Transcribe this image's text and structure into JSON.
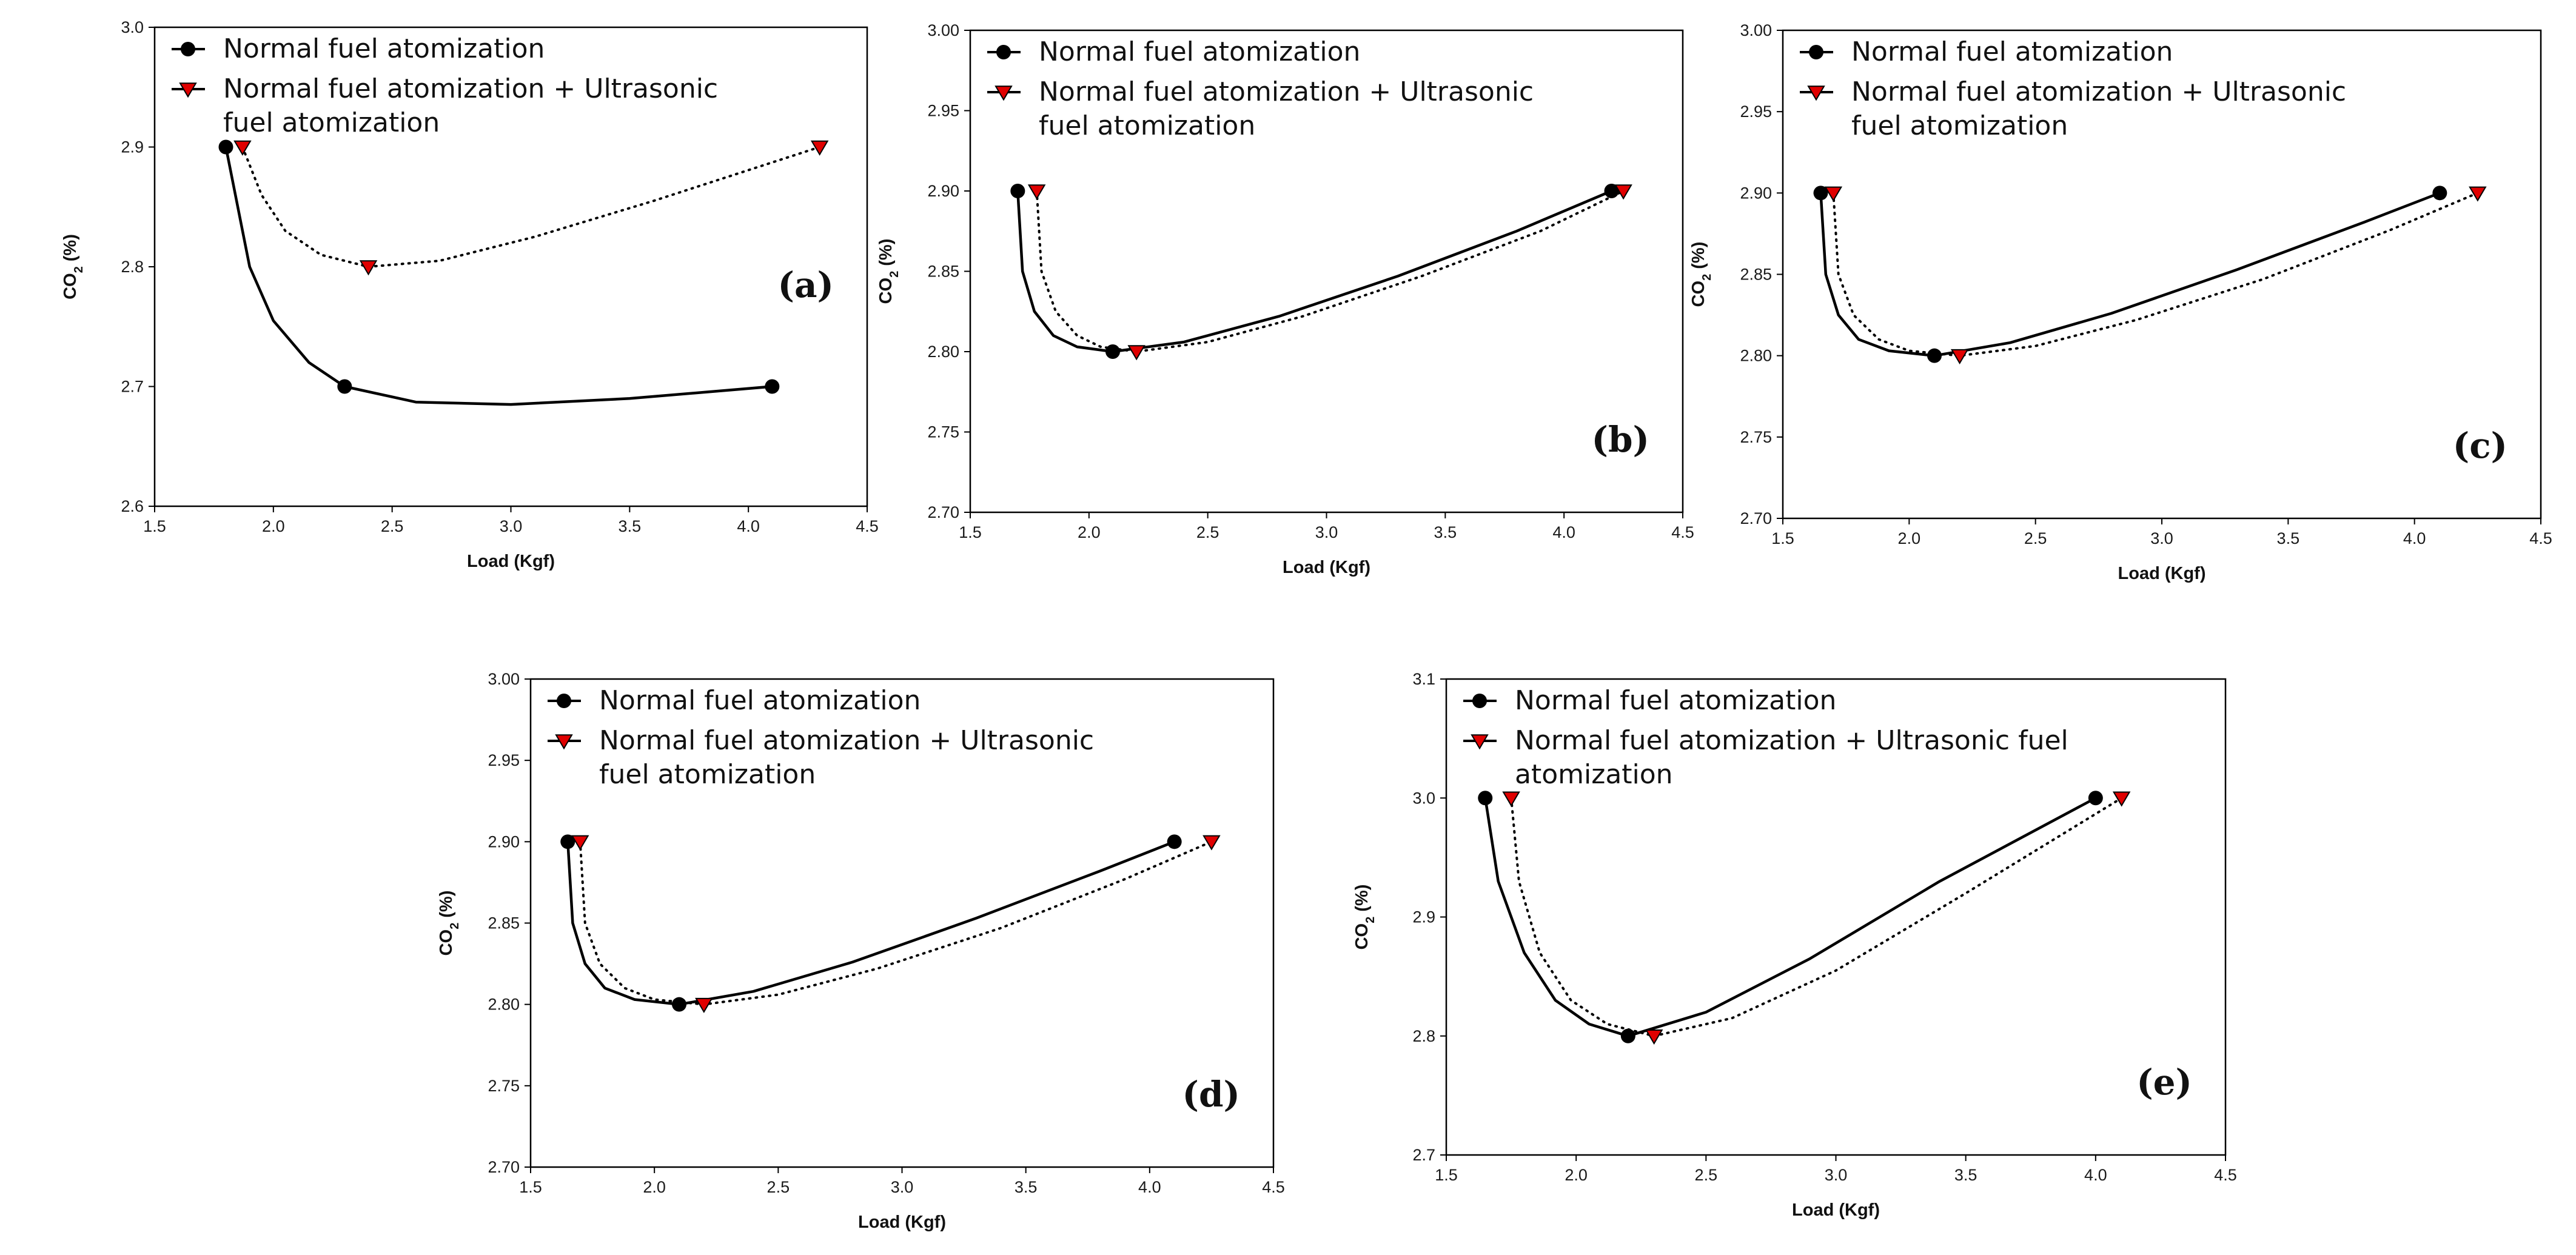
{
  "figure": {
    "marker_color": "#e00000",
    "line_color": "#000000"
  },
  "chart_data": [
    {
      "type": "line",
      "label": "(a)",
      "xlabel": "Load (Kgf)",
      "ylabel_base": "CO",
      "ylabel_sub": "2",
      "ylabel_unit": " (%)",
      "xlim": [
        1.5,
        4.5
      ],
      "ylim": [
        2.6,
        3.0
      ],
      "legend": "top-left",
      "xticks": [
        1.5,
        2.0,
        2.5,
        3.0,
        3.5,
        4.0,
        4.5
      ],
      "xtick_labels": [
        "1.5",
        "2.0",
        "2.5",
        "3.0",
        "3.5",
        "4.0",
        "4.5"
      ],
      "yticks": [
        2.6,
        2.7,
        2.8,
        2.9,
        3.0
      ],
      "ytick_labels": [
        "2.6",
        "2.7",
        "2.8",
        "2.9",
        "3.0"
      ],
      "series": [
        {
          "name": "Normal fuel atomization",
          "legend_lines": [
            "Normal fuel atomization"
          ],
          "marker": "circle",
          "line": "solid",
          "x": [
            1.8,
            2.3,
            4.1
          ],
          "y": [
            2.9,
            2.7,
            2.7
          ],
          "curve_x": [
            1.8,
            1.9,
            2.0,
            2.15,
            2.3,
            2.6,
            3.0,
            3.5,
            4.1
          ],
          "curve_y": [
            2.9,
            2.8,
            2.755,
            2.72,
            2.7,
            2.687,
            2.685,
            2.69,
            2.7
          ]
        },
        {
          "name": "Normal fuel atomization + Ultrasonic fuel atomization",
          "legend_lines": [
            "Normal fuel atomization + Ultrasonic",
            "fuel atomization"
          ],
          "marker": "triangle-down",
          "line": "dotted",
          "x": [
            1.87,
            2.4,
            4.3
          ],
          "y": [
            2.9,
            2.8,
            2.9
          ],
          "curve_x": [
            1.87,
            1.95,
            2.05,
            2.2,
            2.4,
            2.7,
            3.1,
            3.6,
            4.3
          ],
          "curve_y": [
            2.9,
            2.86,
            2.83,
            2.81,
            2.8,
            2.805,
            2.825,
            2.855,
            2.9
          ]
        }
      ]
    },
    {
      "type": "line",
      "label": "(b)",
      "xlabel": "Load (Kgf)",
      "ylabel_base": "CO",
      "ylabel_sub": "2",
      "ylabel_unit": " (%)",
      "xlim": [
        1.5,
        4.5
      ],
      "ylim": [
        2.7,
        3.0
      ],
      "legend": "top-left",
      "xticks": [
        1.5,
        2.0,
        2.5,
        3.0,
        3.5,
        4.0,
        4.5
      ],
      "xtick_labels": [
        "1.5",
        "2.0",
        "2.5",
        "3.0",
        "3.5",
        "4.0",
        "4.5"
      ],
      "yticks": [
        2.7,
        2.75,
        2.8,
        2.85,
        2.9,
        2.95,
        3.0
      ],
      "ytick_labels": [
        "2.70",
        "2.75",
        "2.80",
        "2.85",
        "2.90",
        "2.95",
        "3.00"
      ],
      "series": [
        {
          "name": "Normal fuel atomization",
          "legend_lines": [
            "Normal fuel atomization"
          ],
          "marker": "circle",
          "line": "solid",
          "x": [
            1.7,
            2.1,
            4.2
          ],
          "y": [
            2.9,
            2.8,
            2.9
          ],
          "curve_x": [
            1.7,
            1.72,
            1.77,
            1.85,
            1.95,
            2.1,
            2.4,
            2.8,
            3.3,
            3.8,
            4.2
          ],
          "curve_y": [
            2.9,
            2.85,
            2.825,
            2.81,
            2.803,
            2.8,
            2.806,
            2.822,
            2.847,
            2.875,
            2.9
          ]
        },
        {
          "name": "Normal fuel atomization + Ultrasonic fuel atomization",
          "legend_lines": [
            "Normal fuel atomization + Ultrasonic",
            "fuel atomization"
          ],
          "marker": "triangle-down",
          "line": "dotted",
          "x": [
            1.78,
            2.2,
            4.25
          ],
          "y": [
            2.9,
            2.8,
            2.9
          ],
          "curve_x": [
            1.78,
            1.8,
            1.86,
            1.95,
            2.05,
            2.2,
            2.5,
            2.9,
            3.4,
            3.9,
            4.25
          ],
          "curve_y": [
            2.9,
            2.85,
            2.825,
            2.81,
            2.803,
            2.8,
            2.806,
            2.822,
            2.847,
            2.875,
            2.9
          ]
        }
      ]
    },
    {
      "type": "line",
      "label": "(c)",
      "xlabel": "Load (Kgf)",
      "ylabel_base": "CO",
      "ylabel_sub": "2",
      "ylabel_unit": " (%)",
      "xlim": [
        1.5,
        4.5
      ],
      "ylim": [
        2.7,
        3.0
      ],
      "legend": "top-left",
      "xticks": [
        1.5,
        2.0,
        2.5,
        3.0,
        3.5,
        4.0,
        4.5
      ],
      "xtick_labels": [
        "1.5",
        "2.0",
        "2.5",
        "3.0",
        "3.5",
        "4.0",
        "4.5"
      ],
      "yticks": [
        2.7,
        2.75,
        2.8,
        2.85,
        2.9,
        2.95,
        3.0
      ],
      "ytick_labels": [
        "2.70",
        "2.75",
        "2.80",
        "2.85",
        "2.90",
        "2.95",
        "3.00"
      ],
      "series": [
        {
          "name": "Normal fuel atomization",
          "legend_lines": [
            "Normal fuel atomization"
          ],
          "marker": "circle",
          "line": "solid",
          "x": [
            1.65,
            2.1,
            4.1
          ],
          "y": [
            2.9,
            2.8,
            2.9
          ],
          "curve_x": [
            1.65,
            1.67,
            1.72,
            1.8,
            1.92,
            2.1,
            2.4,
            2.8,
            3.3,
            3.8,
            4.1
          ],
          "curve_y": [
            2.9,
            2.85,
            2.825,
            2.81,
            2.803,
            2.8,
            2.808,
            2.826,
            2.853,
            2.882,
            2.9
          ]
        },
        {
          "name": "Normal fuel atomization + Ultrasonic fuel atomization",
          "legend_lines": [
            "Normal fuel atomization + Ultrasonic",
            "fuel atomization"
          ],
          "marker": "triangle-down",
          "line": "dotted",
          "x": [
            1.7,
            2.2,
            4.25
          ],
          "y": [
            2.9,
            2.8,
            2.9
          ],
          "curve_x": [
            1.7,
            1.72,
            1.78,
            1.88,
            2.0,
            2.2,
            2.5,
            2.9,
            3.4,
            3.9,
            4.25
          ],
          "curve_y": [
            2.9,
            2.85,
            2.825,
            2.81,
            2.803,
            2.8,
            2.806,
            2.822,
            2.847,
            2.877,
            2.9
          ]
        }
      ]
    },
    {
      "type": "line",
      "label": "(d)",
      "xlabel": "Load (Kgf)",
      "ylabel_base": "CO",
      "ylabel_sub": "2",
      "ylabel_unit": " (%)",
      "xlim": [
        1.5,
        4.5
      ],
      "ylim": [
        2.7,
        3.0
      ],
      "legend": "top-left",
      "xticks": [
        1.5,
        2.0,
        2.5,
        3.0,
        3.5,
        4.0,
        4.5
      ],
      "xtick_labels": [
        "1.5",
        "2.0",
        "2.5",
        "3.0",
        "3.5",
        "4.0",
        "4.5"
      ],
      "yticks": [
        2.7,
        2.75,
        2.8,
        2.85,
        2.9,
        2.95,
        3.0
      ],
      "ytick_labels": [
        "2.70",
        "2.75",
        "2.80",
        "2.85",
        "2.90",
        "2.95",
        "3.00"
      ],
      "series": [
        {
          "name": "Normal fuel atomization",
          "legend_lines": [
            "Normal fuel atomization"
          ],
          "marker": "circle",
          "line": "solid",
          "x": [
            1.65,
            2.1,
            4.1
          ],
          "y": [
            2.9,
            2.8,
            2.9
          ],
          "curve_x": [
            1.65,
            1.67,
            1.72,
            1.8,
            1.92,
            2.1,
            2.4,
            2.8,
            3.3,
            3.8,
            4.1
          ],
          "curve_y": [
            2.9,
            2.85,
            2.825,
            2.81,
            2.803,
            2.8,
            2.808,
            2.826,
            2.853,
            2.882,
            2.9
          ]
        },
        {
          "name": "Normal fuel atomization + Ultrasonic fuel atomization",
          "legend_lines": [
            "Normal fuel atomization + Ultrasonic",
            "fuel atomization"
          ],
          "marker": "triangle-down",
          "line": "dotted",
          "x": [
            1.7,
            2.2,
            4.25
          ],
          "y": [
            2.9,
            2.8,
            2.9
          ],
          "curve_x": [
            1.7,
            1.72,
            1.78,
            1.88,
            2.0,
            2.2,
            2.5,
            2.9,
            3.4,
            3.9,
            4.25
          ],
          "curve_y": [
            2.9,
            2.85,
            2.825,
            2.81,
            2.803,
            2.8,
            2.806,
            2.822,
            2.847,
            2.877,
            2.9
          ]
        }
      ]
    },
    {
      "type": "line",
      "label": "(e)",
      "xlabel": "Load (Kgf)",
      "ylabel_base": "CO",
      "ylabel_sub": "2",
      "ylabel_unit": " (%)",
      "xlim": [
        1.5,
        4.5
      ],
      "ylim": [
        2.7,
        3.1
      ],
      "legend": "top-left",
      "xticks": [
        1.5,
        2.0,
        2.5,
        3.0,
        3.5,
        4.0,
        4.5
      ],
      "xtick_labels": [
        "1.5",
        "2.0",
        "2.5",
        "3.0",
        "3.5",
        "4.0",
        "4.5"
      ],
      "yticks": [
        2.7,
        2.8,
        2.9,
        3.0,
        3.1
      ],
      "ytick_labels": [
        "2.7",
        "2.8",
        "2.9",
        "3.0",
        "3.1"
      ],
      "series": [
        {
          "name": "Normal fuel atomization",
          "legend_lines": [
            "Normal fuel atomization"
          ],
          "marker": "circle",
          "line": "solid",
          "x": [
            1.65,
            2.2,
            4.0
          ],
          "y": [
            3.0,
            2.8,
            3.0
          ],
          "curve_x": [
            1.65,
            1.7,
            1.8,
            1.92,
            2.05,
            2.2,
            2.5,
            2.9,
            3.4,
            4.0
          ],
          "curve_y": [
            3.0,
            2.93,
            2.87,
            2.83,
            2.81,
            2.8,
            2.82,
            2.865,
            2.93,
            3.0
          ]
        },
        {
          "name": "Normal fuel atomization + Ultrasonic fuel atomization",
          "legend_lines": [
            "Normal fuel atomization + Ultrasonic fuel",
            "atomization"
          ],
          "marker": "triangle-down",
          "line": "dotted",
          "x": [
            1.75,
            2.3,
            4.1
          ],
          "y": [
            3.0,
            2.8,
            3.0
          ],
          "curve_x": [
            1.75,
            1.78,
            1.86,
            1.98,
            2.12,
            2.3,
            2.6,
            3.0,
            3.5,
            4.1
          ],
          "curve_y": [
            3.0,
            2.93,
            2.87,
            2.83,
            2.81,
            2.8,
            2.815,
            2.855,
            2.92,
            3.0
          ]
        }
      ]
    }
  ]
}
